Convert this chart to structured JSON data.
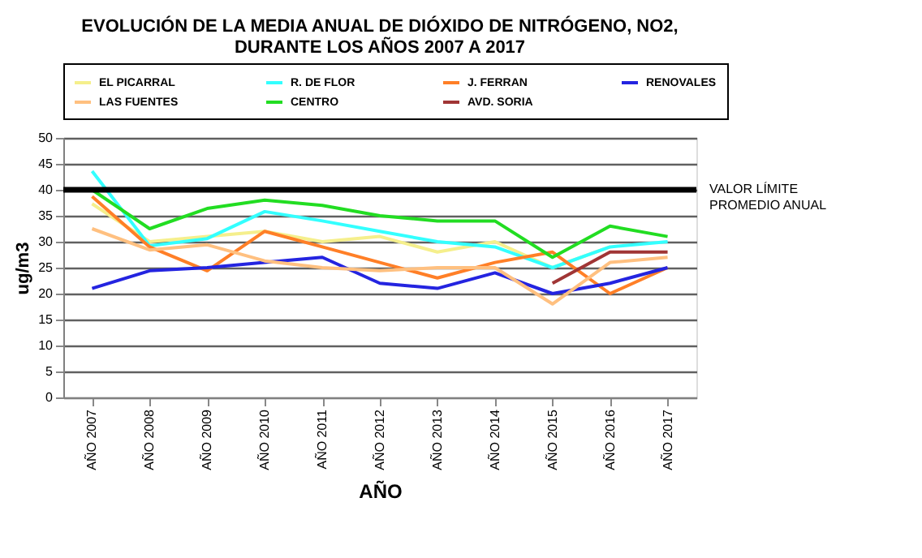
{
  "chart_data": {
    "type": "line",
    "title": "EVOLUCIÓN DE LA MEDIA ANUAL DE DIÓXIDO DE NITRÓGENO, NO2,\nDURANTE LOS AÑOS 2007 A 2017",
    "xlabel": "AÑO",
    "ylabel": "ug/m3",
    "categories": [
      "AÑO 2007",
      "AÑO 2008",
      "AÑO 2009",
      "AÑO 2010",
      "AÑO 2011",
      "AÑO 2012",
      "AÑO 2013",
      "AÑO 2014",
      "AÑO 2015",
      "AÑO 2016",
      "AÑO 2017"
    ],
    "series": [
      {
        "name": "EL PICARRAL",
        "color": "#f5ef8c",
        "values": [
          37.3,
          30,
          31,
          32,
          30,
          31,
          28,
          30,
          25,
          29,
          null
        ]
      },
      {
        "name": "R. DE FLOR",
        "color": "#33ffff",
        "values": [
          43.6,
          29.2,
          30.6,
          35.8,
          34,
          32,
          30,
          29,
          25,
          29,
          30
        ]
      },
      {
        "name": "J. FERRAN",
        "color": "#ff7f27",
        "values": [
          38.7,
          29,
          24.4,
          32,
          29,
          26,
          23,
          26,
          28,
          20,
          25
        ]
      },
      {
        "name": "RENOVALES",
        "color": "#2424e0",
        "values": [
          21,
          24.4,
          25,
          26,
          27,
          22,
          21,
          24,
          20,
          22,
          25
        ]
      },
      {
        "name": "LAS FUENTES",
        "color": "#ffc080",
        "values": [
          32.5,
          28.4,
          29.4,
          26.3,
          25,
          24.4,
          25,
          25,
          18,
          26,
          27
        ]
      },
      {
        "name": "CENTRO",
        "color": "#22dd22",
        "values": [
          40,
          32.5,
          36.4,
          38,
          37,
          35,
          34,
          34,
          27,
          33,
          31
        ]
      },
      {
        "name": "AVD. SORIA",
        "color": "#a03535",
        "values": [
          null,
          null,
          null,
          null,
          null,
          null,
          null,
          null,
          22,
          28,
          28
        ]
      }
    ],
    "ylim": [
      0,
      50
    ],
    "yticks": [
      0,
      5,
      10,
      15,
      20,
      25,
      30,
      35,
      40,
      45,
      50
    ],
    "ref_lines": [
      {
        "axis": "y",
        "value": 40,
        "label": "VALOR LÍMITE\nPROMEDIO ANUAL",
        "color": "#000000"
      }
    ],
    "grid": "y",
    "legend": "top",
    "marker": "none",
    "line_style": "solid"
  }
}
